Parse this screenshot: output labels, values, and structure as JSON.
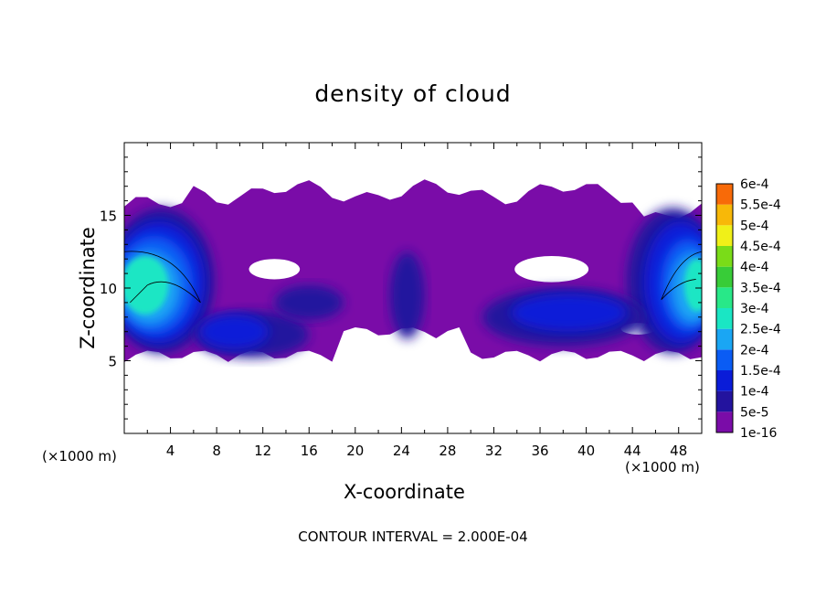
{
  "chart_data": {
    "type": "heatmap",
    "title": "density of cloud",
    "xlabel": "X-coordinate",
    "ylabel": "Z-coordinate",
    "x_unit": "(×1000 m)",
    "xlim": [
      0,
      50
    ],
    "ylim": [
      0,
      20
    ],
    "x_ticks": [
      4,
      8,
      12,
      16,
      20,
      24,
      28,
      32,
      36,
      40,
      44,
      48
    ],
    "y_ticks": [
      5,
      10,
      15
    ],
    "footer": "CONTOUR INTERVAL = 2.000E-04",
    "colorbar": {
      "levels": [
        "1e-16",
        "5e-5",
        "1e-4",
        "1.5e-4",
        "2e-4",
        "2.5e-4",
        "3e-4",
        "3.5e-4",
        "4e-4",
        "4.5e-4",
        "5e-4",
        "5.5e-4",
        "6e-4"
      ],
      "colors": [
        "#7a0ca8",
        "#23139e",
        "#0a1cd8",
        "#0a5cf4",
        "#1aa6f4",
        "#1ae6c4",
        "#28e888",
        "#38cc38",
        "#7adc18",
        "#f0f018",
        "#f8b808",
        "#f86a08",
        "#f82810",
        "#f07878"
      ]
    },
    "regions": {
      "cloud_layer_z": [
        4.3,
        17.8
      ],
      "contour_line_level": "2e-4"
    }
  }
}
